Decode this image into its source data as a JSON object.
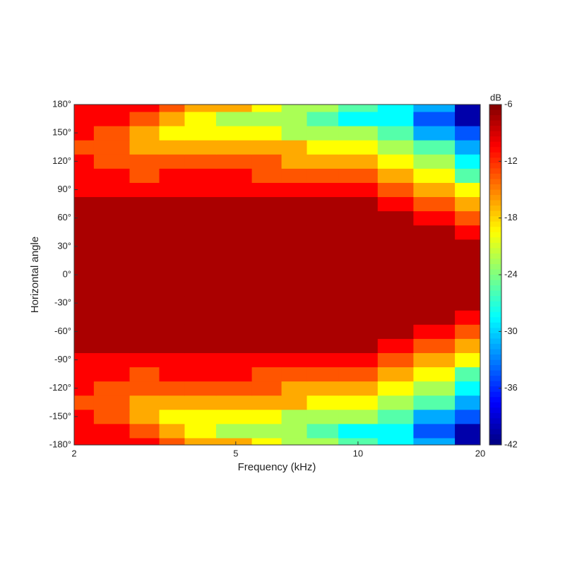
{
  "chart_data": {
    "type": "contour",
    "xlabel": "Frequency (kHz)",
    "ylabel": "Horizontal angle",
    "xscale": "log",
    "x": [
      2,
      2.5,
      3,
      3.5,
      4,
      5,
      6,
      7,
      8,
      10,
      12.5,
      15,
      20
    ],
    "y": [
      -180,
      -165,
      -150,
      -135,
      -120,
      -105,
      -90,
      -75,
      -60,
      -45,
      -30,
      -15,
      0,
      15,
      30,
      45,
      60,
      75,
      90,
      105,
      120,
      135,
      150,
      165,
      180
    ],
    "z": [
      [
        -10,
        -10,
        -12,
        -15,
        -16,
        -18,
        -20,
        -22,
        -24,
        -26,
        -28,
        -33,
        -40
      ],
      [
        -10,
        -11,
        -14,
        -18,
        -19,
        -22,
        -23,
        -24,
        -26,
        -28,
        -30,
        -34,
        -40
      ],
      [
        -12,
        -13,
        -17,
        -20,
        -20,
        -21,
        -21,
        -22,
        -22,
        -23,
        -27,
        -31,
        -36
      ],
      [
        -13,
        -14,
        -16,
        -18,
        -17,
        -17,
        -17,
        -18,
        -19,
        -20,
        -23,
        -27,
        -31
      ],
      [
        -12,
        -14,
        -15,
        -14,
        -14,
        -14,
        -15,
        -16,
        -17,
        -17,
        -20,
        -24,
        -28
      ],
      [
        -11,
        -12,
        -13,
        -12,
        -12,
        -12,
        -13,
        -13,
        -14,
        -15,
        -17,
        -20,
        -25
      ],
      [
        -10,
        -10,
        -11,
        -11,
        -10,
        -11,
        -11,
        -11,
        -12,
        -12,
        -14,
        -16,
        -21
      ],
      [
        -8,
        -8,
        -8,
        -9,
        -9,
        -8,
        -8,
        -8,
        -9,
        -9,
        -11,
        -13,
        -18
      ],
      [
        -7,
        -7,
        -7,
        -7,
        -7,
        -7,
        -7,
        -7,
        -7,
        -8,
        -9,
        -11,
        -15
      ],
      [
        -6,
        -6,
        -6,
        -6,
        -6,
        -6,
        -6,
        -6,
        -6,
        -7,
        -8,
        -9,
        -12
      ],
      [
        -6,
        -6,
        -6,
        -6,
        -6,
        -6,
        -6,
        -6,
        -6,
        -6,
        -7,
        -8,
        -9
      ],
      [
        -6,
        -6,
        -6,
        -6,
        -6,
        -6,
        -6,
        -6,
        -6,
        -6,
        -6,
        -7,
        -8
      ],
      [
        -6,
        -6,
        -6,
        -6,
        -6,
        -6,
        -6,
        -6,
        -6,
        -6,
        -6,
        -7,
        -7
      ],
      [
        -6,
        -6,
        -6,
        -6,
        -6,
        -6,
        -6,
        -6,
        -6,
        -6,
        -6,
        -7,
        -8
      ],
      [
        -6,
        -6,
        -6,
        -6,
        -6,
        -6,
        -6,
        -6,
        -6,
        -6,
        -7,
        -8,
        -9
      ],
      [
        -6,
        -6,
        -6,
        -6,
        -6,
        -6,
        -6,
        -6,
        -6,
        -7,
        -8,
        -9,
        -12
      ],
      [
        -7,
        -7,
        -7,
        -7,
        -7,
        -7,
        -7,
        -7,
        -7,
        -8,
        -9,
        -11,
        -15
      ],
      [
        -8,
        -8,
        -8,
        -9,
        -9,
        -8,
        -8,
        -8,
        -9,
        -9,
        -11,
        -13,
        -18
      ],
      [
        -10,
        -10,
        -11,
        -11,
        -10,
        -11,
        -11,
        -11,
        -12,
        -12,
        -14,
        -16,
        -21
      ],
      [
        -11,
        -12,
        -13,
        -12,
        -12,
        -12,
        -13,
        -13,
        -14,
        -15,
        -17,
        -20,
        -25
      ],
      [
        -12,
        -14,
        -15,
        -14,
        -14,
        -14,
        -15,
        -16,
        -17,
        -17,
        -20,
        -24,
        -28
      ],
      [
        -13,
        -14,
        -16,
        -18,
        -17,
        -17,
        -17,
        -18,
        -19,
        -20,
        -23,
        -27,
        -31
      ],
      [
        -12,
        -13,
        -17,
        -20,
        -20,
        -21,
        -21,
        -22,
        -22,
        -23,
        -27,
        -31,
        -36
      ],
      [
        -10,
        -11,
        -14,
        -18,
        -19,
        -22,
        -23,
        -24,
        -26,
        -28,
        -30,
        -34,
        -40
      ],
      [
        -10,
        -10,
        -12,
        -15,
        -16,
        -18,
        -20,
        -22,
        -24,
        -26,
        -28,
        -33,
        -40
      ]
    ],
    "xlim": [
      2,
      20
    ],
    "xticks": [
      2,
      5,
      10,
      20
    ],
    "ylim": [
      -180,
      180
    ],
    "yticks": [
      {
        "value": -180,
        "label": "-180°"
      },
      {
        "value": -150,
        "label": "-150°"
      },
      {
        "value": -120,
        "label": "-120°"
      },
      {
        "value": -90,
        "label": "-90°"
      },
      {
        "value": -60,
        "label": "-60°"
      },
      {
        "value": -30,
        "label": "-30°"
      },
      {
        "value": 0,
        "label": "0°"
      },
      {
        "value": 30,
        "label": "30°"
      },
      {
        "value": 60,
        "label": "60°"
      },
      {
        "value": 90,
        "label": "90°"
      },
      {
        "value": 120,
        "label": "120°"
      },
      {
        "value": 150,
        "label": "150°"
      },
      {
        "value": 180,
        "label": "180°"
      }
    ],
    "colorbar": {
      "label": "dB",
      "colormap": "jet",
      "clim": [
        -42,
        -6
      ],
      "ticks": [
        -6,
        -12,
        -18,
        -24,
        -30,
        -36,
        -42
      ]
    },
    "contour_step": 3
  }
}
